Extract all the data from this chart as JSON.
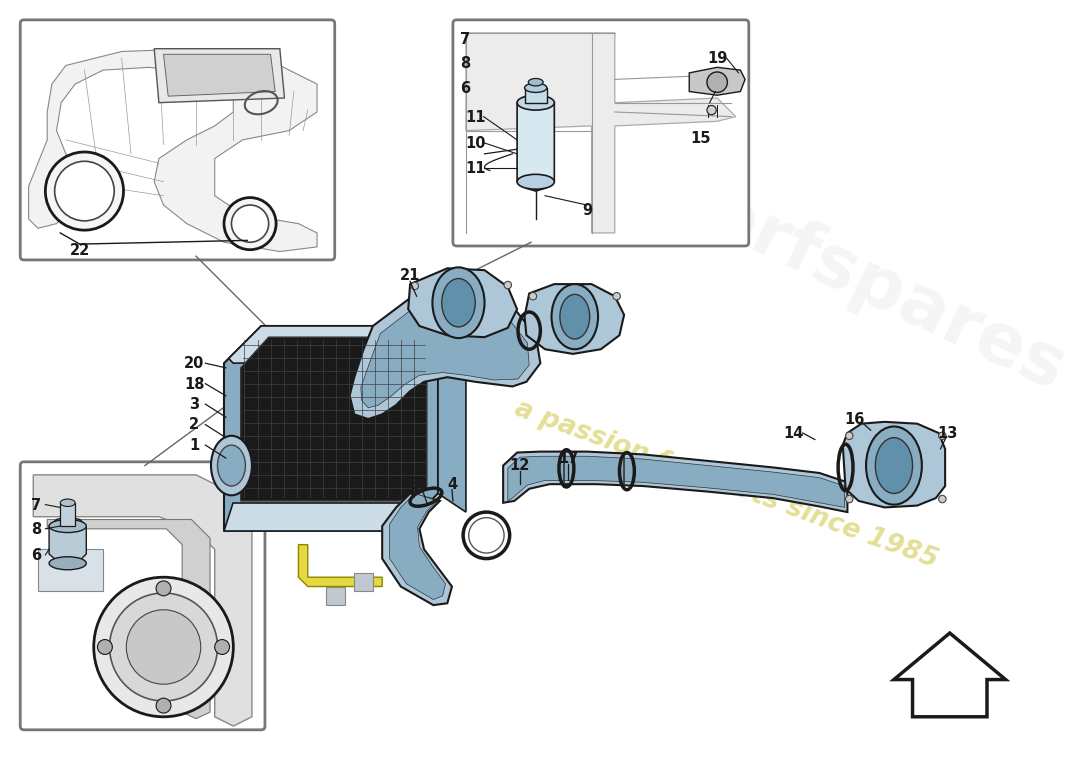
{
  "bg_color": "#ffffff",
  "blue_fill": "#adc6d8",
  "blue_mid": "#88adc2",
  "blue_dark": "#6090aa",
  "blue_light": "#ccdde8",
  "line_color": "#1a1a1a",
  "gray_fill": "#e8e8e8",
  "gray_dark": "#555555",
  "dark_filter": "#222222",
  "watermark_text": "a passion for parts since 1985",
  "watermark_color": "#c8c030",
  "watermark_alpha": 0.5,
  "spares_text": "superfspares",
  "spares_color": "#cccccc",
  "spares_alpha": 0.2,
  "label_fontsize": 10.5,
  "label_color": "#1a1a1a"
}
